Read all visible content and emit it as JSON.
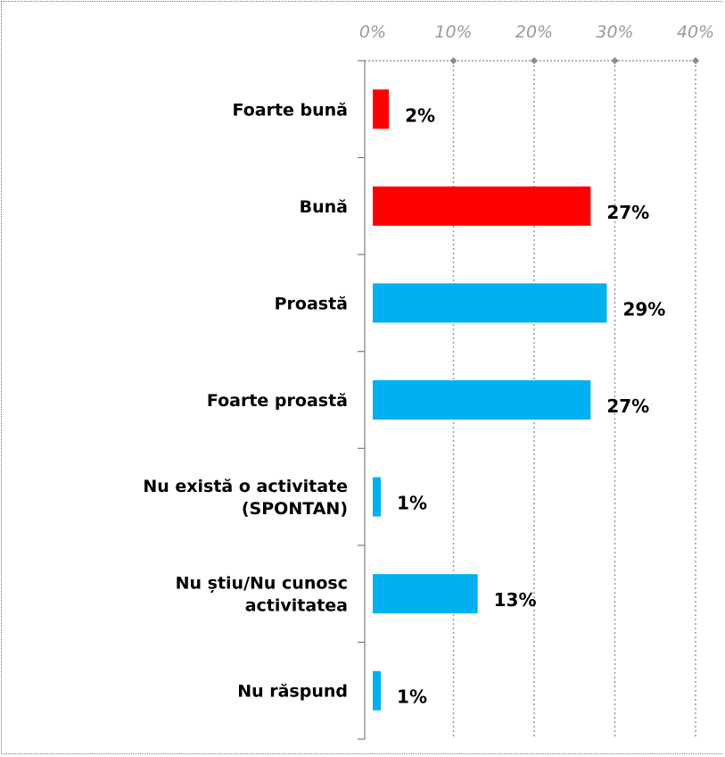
{
  "chart_data": {
    "type": "bar",
    "orientation": "horizontal",
    "categories": [
      [
        "Foarte bună"
      ],
      [
        "Bună"
      ],
      [
        "Proastă"
      ],
      [
        "Foarte proastă"
      ],
      [
        "Nu există o activitate",
        "(SPONTAN)"
      ],
      [
        "Nu știu/Nu cunosc",
        "activitatea"
      ],
      [
        "Nu răspund"
      ]
    ],
    "values": [
      2,
      27,
      29,
      27,
      1,
      13,
      1
    ],
    "value_labels": [
      "2%",
      "27%",
      "29%",
      "27%",
      "1%",
      "13%",
      "1%"
    ],
    "bar_colors": [
      "#ff0000",
      "#ff0000",
      "#00b0f0",
      "#00b0f0",
      "#00b0f0",
      "#00b0f0",
      "#00b0f0"
    ],
    "xlim": [
      0,
      40
    ],
    "xticks": [
      0,
      10,
      20,
      30,
      40
    ],
    "xtick_labels": [
      "0%",
      "10%",
      "20%",
      "30%",
      "40%"
    ],
    "axis_position": "top",
    "grid": true,
    "gridline_color": "#999999"
  }
}
